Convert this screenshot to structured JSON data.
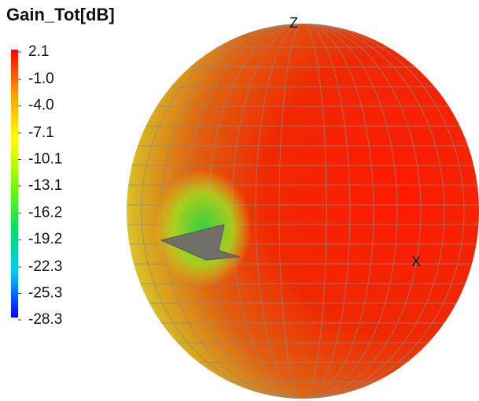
{
  "chart_data": {
    "type": "radiation-pattern-3d",
    "title": "Gain_Tot[dB]",
    "colorbar": {
      "lim": [
        -28.3,
        2.1
      ],
      "colors": [
        "#0000ff",
        "#00c8ff",
        "#00e060",
        "#7cff00",
        "#ffff00",
        "#ffa000",
        "#ff0000"
      ],
      "ticks": [
        2.1,
        {
          "value": -1.0,
          "label": "-1.0"
        },
        {
          "value": -4.0,
          "label": "-4.0"
        },
        -7.1,
        -10.1,
        -13.1,
        -16.2,
        -19.2,
        -22.3,
        -25.3,
        -28.3
      ]
    },
    "axis_labels": [
      "Z",
      "X"
    ]
  }
}
